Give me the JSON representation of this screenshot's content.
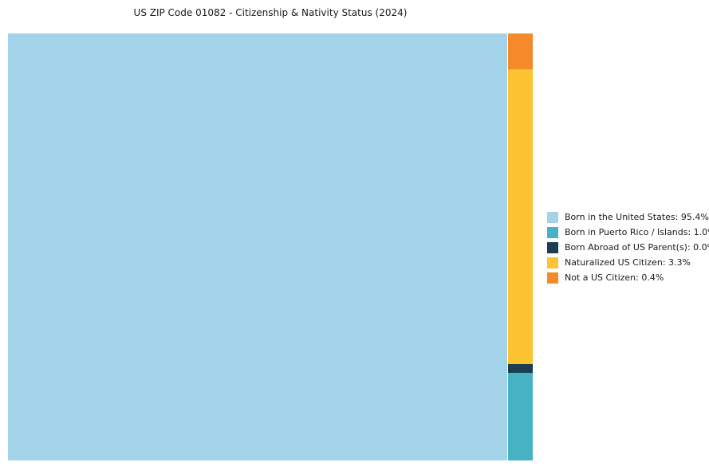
{
  "chart_data": {
    "type": "treemap",
    "title": "US ZIP Code 01082 - Citizenship & Nativity Status (2024)",
    "categories": [
      "Born in the United States",
      "Born in Puerto Rico / Islands",
      "Born Abroad of US Parent(s)",
      "Naturalized US Citizen",
      "Not a US Citizen"
    ],
    "values": [
      95.4,
      1.0,
      0.0,
      3.3,
      0.4
    ],
    "unit": "%",
    "colors": [
      "#a3d3e8",
      "#47b2c4",
      "#1d3d51",
      "#fdc330",
      "#f58a2a"
    ],
    "legend_position": "right",
    "legend": [
      {
        "label": "Born in the United States: 95.4%",
        "color": "#a3d3e8"
      },
      {
        "label": "Born in Puerto Rico / Islands: 1.0%",
        "color": "#47b2c4"
      },
      {
        "label": "Born Abroad of US Parent(s): 0.0%",
        "color": "#1d3d51"
      },
      {
        "label": "Naturalized US Citizen: 3.3%",
        "color": "#fdc330"
      },
      {
        "label": "Not a US Citizen: 0.4%",
        "color": "#f58a2a"
      }
    ]
  }
}
